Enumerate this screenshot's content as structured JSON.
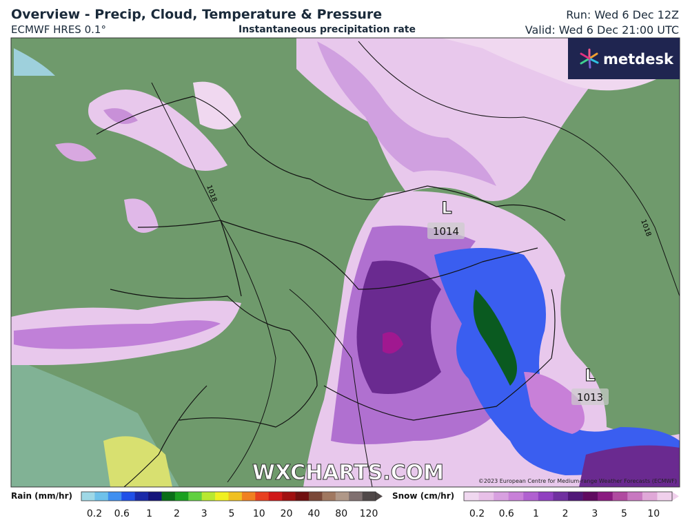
{
  "header": {
    "title": "Overview - Precip, Cloud, Temperature & Pressure",
    "model": "ECMWF HRES 0.1°",
    "field": "Instantaneous precipitation rate",
    "run": "Run: Wed 6 Dec 12Z",
    "valid": "Valid: Wed 6 Dec 21:00 UTC"
  },
  "logo": "metdesk",
  "map": {
    "isobars": [
      "1018",
      "1018"
    ],
    "lows": [
      {
        "symbol": "L",
        "pressure": "1014"
      },
      {
        "symbol": "L",
        "pressure": "1013"
      }
    ],
    "watermark": "WXCHARTS.COM",
    "copyright": "©2023 European Centre for Medium-range Weather Forecasts (ECMWF)"
  },
  "legend": {
    "rain": {
      "title": "Rain (mm/hr)",
      "labels": [
        0.2,
        0.6,
        1,
        2,
        3,
        5,
        10,
        20,
        40,
        80,
        120
      ],
      "colors": [
        "#9fd8e6",
        "#6ec1ea",
        "#3f8ff0",
        "#2050e8",
        "#1a2aa8",
        "#14147a",
        "#0a6e18",
        "#1aa020",
        "#60d040",
        "#b8e830",
        "#f0f020",
        "#f0c020",
        "#f08020",
        "#e84020",
        "#d01818",
        "#a01010",
        "#701010",
        "#7a4838",
        "#a07860",
        "#b09888",
        "#807070",
        "#504848"
      ]
    },
    "snow": {
      "title": "Snow (cm/hr)",
      "labels": [
        0.2,
        0.6,
        1,
        2,
        3,
        5,
        10
      ],
      "colors": [
        "#f0d8f0",
        "#e8c0e8",
        "#d8a0e0",
        "#c880d8",
        "#b060d0",
        "#9040c0",
        "#7030a0",
        "#501878",
        "#600a60",
        "#8a1a80",
        "#b04aa0",
        "#c878c0",
        "#e0a8d8",
        "#f0d0ec"
      ]
    }
  }
}
